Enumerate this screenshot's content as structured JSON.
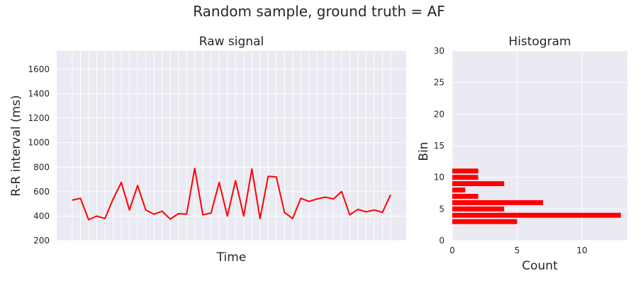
{
  "figure": {
    "title": "Random sample, ground truth = AF"
  },
  "colors": {
    "series": "#ff0000",
    "axes_background": "#eaeaf2",
    "grid": "#ffffff",
    "text": "#262626"
  },
  "chart_data": [
    {
      "type": "line",
      "title": "Raw signal",
      "xlabel": "Time",
      "ylabel": "R-R interval (ms)",
      "ylim": [
        200,
        1750
      ],
      "yticks": [
        200,
        400,
        600,
        800,
        1000,
        1200,
        1400,
        1600
      ],
      "x_tick_labels_visible": false,
      "grid": true,
      "series": [
        {
          "values": [
            530,
            545,
            370,
            400,
            380,
            540,
            675,
            450,
            650,
            450,
            415,
            440,
            375,
            420,
            415,
            790,
            410,
            425,
            675,
            400,
            690,
            400,
            785,
            380,
            725,
            720,
            430,
            380,
            545,
            520,
            540,
            555,
            540,
            600,
            410,
            455,
            435,
            450,
            430,
            575
          ]
        }
      ]
    },
    {
      "type": "bar",
      "orientation": "horizontal",
      "title": "Histogram",
      "xlabel": "Count",
      "ylabel": "Bin",
      "xlim": [
        0,
        13.5
      ],
      "ylim": [
        0,
        30
      ],
      "xticks": [
        0,
        5,
        10
      ],
      "yticks": [
        0,
        5,
        10,
        15,
        20,
        25,
        30
      ],
      "grid": true,
      "bins": [
        3,
        4,
        5,
        6,
        7,
        8,
        9,
        10,
        11
      ],
      "values": [
        5,
        13,
        4,
        7,
        2,
        1,
        4,
        2,
        2
      ]
    }
  ]
}
